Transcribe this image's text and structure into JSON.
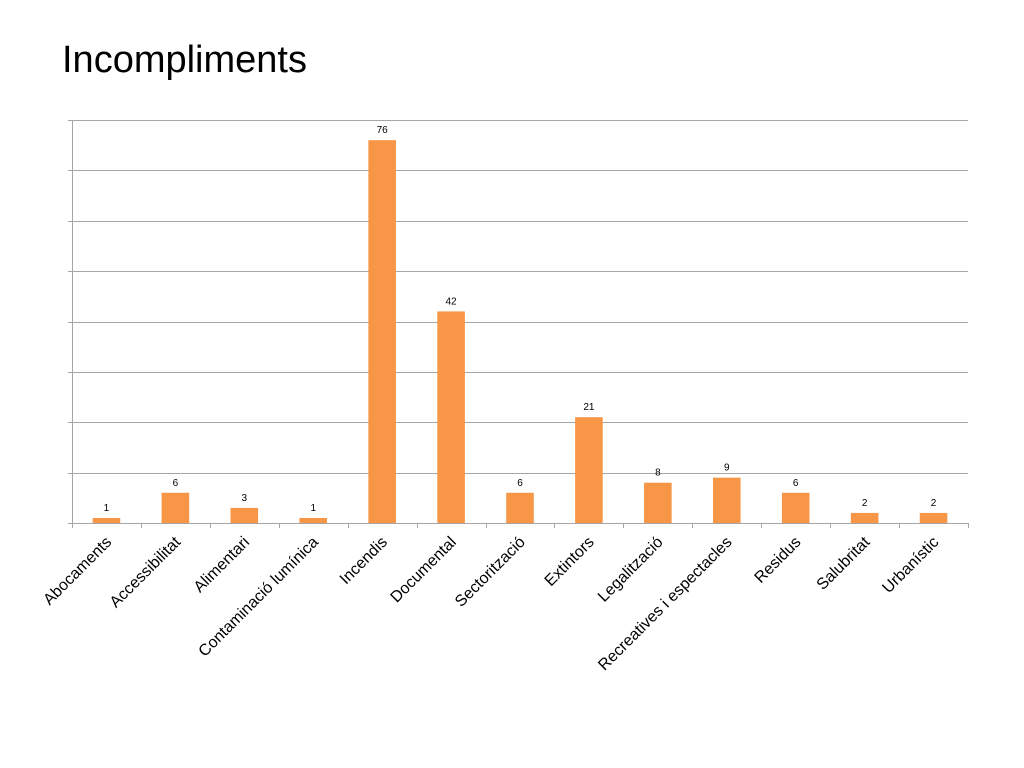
{
  "slide": {
    "title": "Incompliments"
  },
  "chart_data": {
    "type": "bar",
    "categories": [
      "Abocaments",
      "Accessibilitat",
      "Alimentari",
      "Contaminació lumínica",
      "Incendis",
      "Documental",
      "Sectorització",
      "Extintors",
      "Legalització",
      "Recreatives i espectacles",
      "Residus",
      "Salubritat",
      "Urbanístic"
    ],
    "values": [
      1,
      6,
      3,
      1,
      76,
      42,
      6,
      21,
      8,
      9,
      6,
      2,
      2
    ],
    "ylim": [
      0,
      80
    ],
    "y_major_unit": 10,
    "grid": true,
    "legend": "none",
    "bar_color": "#f79646",
    "gridline_color": "#a6a6a6",
    "data_labels": true
  }
}
